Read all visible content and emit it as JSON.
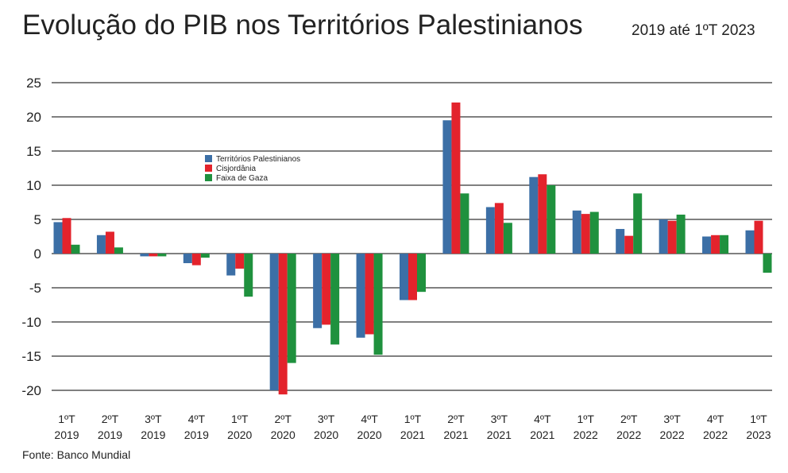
{
  "title": "Evolução do PIB nos Territórios Palestinianos",
  "subtitle": "2019 até 1ºT 2023",
  "source": "Fonte: Banco Mundial",
  "colors": {
    "series": [
      "#3c6fa6",
      "#e3232c",
      "#1f913e"
    ],
    "grid": "#000000",
    "text": "#222222"
  },
  "chart_data": {
    "type": "bar",
    "categories": [
      [
        "1ºT",
        "2019"
      ],
      [
        "2ºT",
        "2019"
      ],
      [
        "3ºT",
        "2019"
      ],
      [
        "4ºT",
        "2019"
      ],
      [
        "1ºT",
        "2020"
      ],
      [
        "2ºT",
        "2020"
      ],
      [
        "3ºT",
        "2020"
      ],
      [
        "4ºT",
        "2020"
      ],
      [
        "1ºT",
        "2021"
      ],
      [
        "2ºT",
        "2021"
      ],
      [
        "3ºT",
        "2021"
      ],
      [
        "4ºT",
        "2021"
      ],
      [
        "1ºT",
        "2022"
      ],
      [
        "2ºT",
        "2022"
      ],
      [
        "3ºT",
        "2022"
      ],
      [
        "4ºT",
        "2022"
      ],
      [
        "1ºT",
        "2023"
      ]
    ],
    "series": [
      {
        "name": "Territórios Palestinianos",
        "values": [
          4.6,
          2.7,
          -0.4,
          -1.4,
          -3.2,
          -20.0,
          -10.9,
          -12.3,
          -6.8,
          19.5,
          6.8,
          11.2,
          6.3,
          3.6,
          5.0,
          2.5,
          3.4
        ]
      },
      {
        "name": "Cisjordânia",
        "values": [
          5.2,
          3.2,
          -0.4,
          -1.7,
          -2.2,
          -20.6,
          -10.4,
          -11.8,
          -6.8,
          22.1,
          7.4,
          11.6,
          5.8,
          2.6,
          4.8,
          2.7,
          4.8
        ]
      },
      {
        "name": "Faixa de Gaza",
        "values": [
          1.3,
          0.9,
          -0.4,
          -0.6,
          -6.3,
          -16.0,
          -13.3,
          -14.8,
          -5.6,
          8.8,
          4.5,
          10.0,
          6.1,
          8.8,
          5.7,
          2.7,
          -2.8
        ]
      }
    ],
    "yticks": [
      25,
      20,
      15,
      10,
      5,
      0,
      -5,
      -10,
      -15,
      -20
    ],
    "ylim": [
      -20,
      25
    ],
    "grid": true,
    "legend_position": "upper-left"
  }
}
